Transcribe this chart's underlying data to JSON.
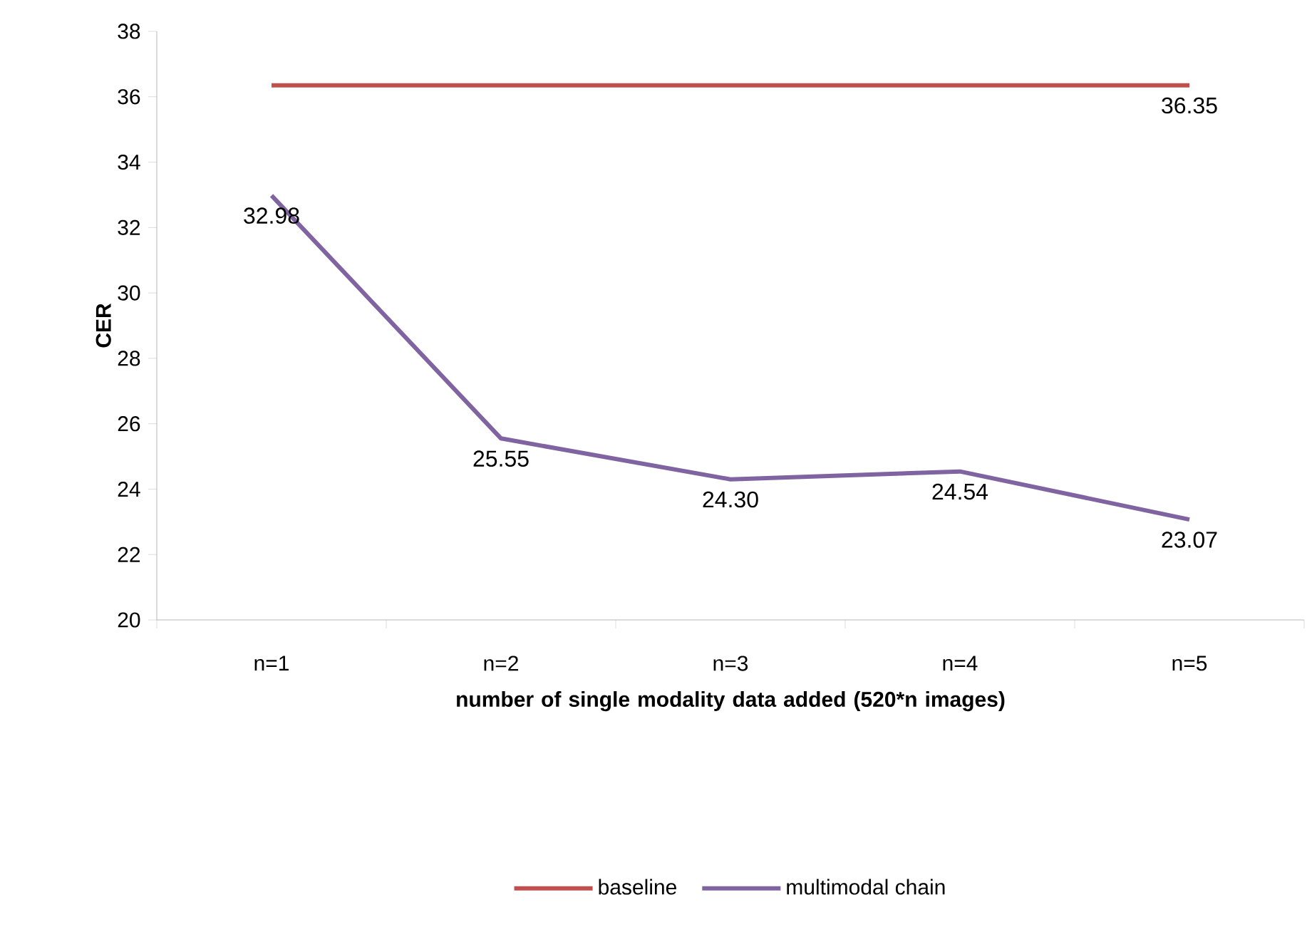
{
  "chart_data": {
    "type": "line",
    "xlabel": "number of single modality data added (520*n images)",
    "ylabel": "CER",
    "categories": [
      "n=1",
      "n=2",
      "n=3",
      "n=4",
      "n=5"
    ],
    "series": [
      {
        "name": "baseline",
        "color": "#c0504d",
        "values": [
          36.35,
          36.35,
          36.35,
          36.35,
          36.35
        ],
        "value_labels": [
          null,
          null,
          null,
          null,
          "36.35"
        ]
      },
      {
        "name": "multimodal chain",
        "color": "#8064a2",
        "values": [
          32.98,
          25.55,
          24.3,
          24.54,
          23.07
        ],
        "value_labels": [
          "32.98",
          "25.55",
          "24.30",
          "24.54",
          "23.07"
        ]
      }
    ],
    "ylim": [
      20,
      38
    ],
    "yticks": [
      20,
      22,
      24,
      26,
      28,
      30,
      32,
      34,
      36,
      38
    ],
    "grid": false,
    "legend": "bottom",
    "marker": "none",
    "line_style": "solid"
  }
}
